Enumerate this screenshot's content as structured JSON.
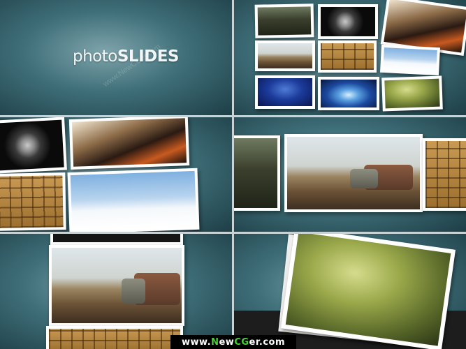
{
  "title": {
    "light": "photo",
    "bold": "SLIDES"
  },
  "watermark": "www.NewCGer.com",
  "footer": {
    "prefix": "www.",
    "n": "N",
    "ew": "ew",
    "cg": "CG",
    "er": "er.com"
  },
  "colors": {
    "background_teal": "#3f6f79",
    "footer_bg": "#000000",
    "footer_accent": "#4ad13a"
  }
}
